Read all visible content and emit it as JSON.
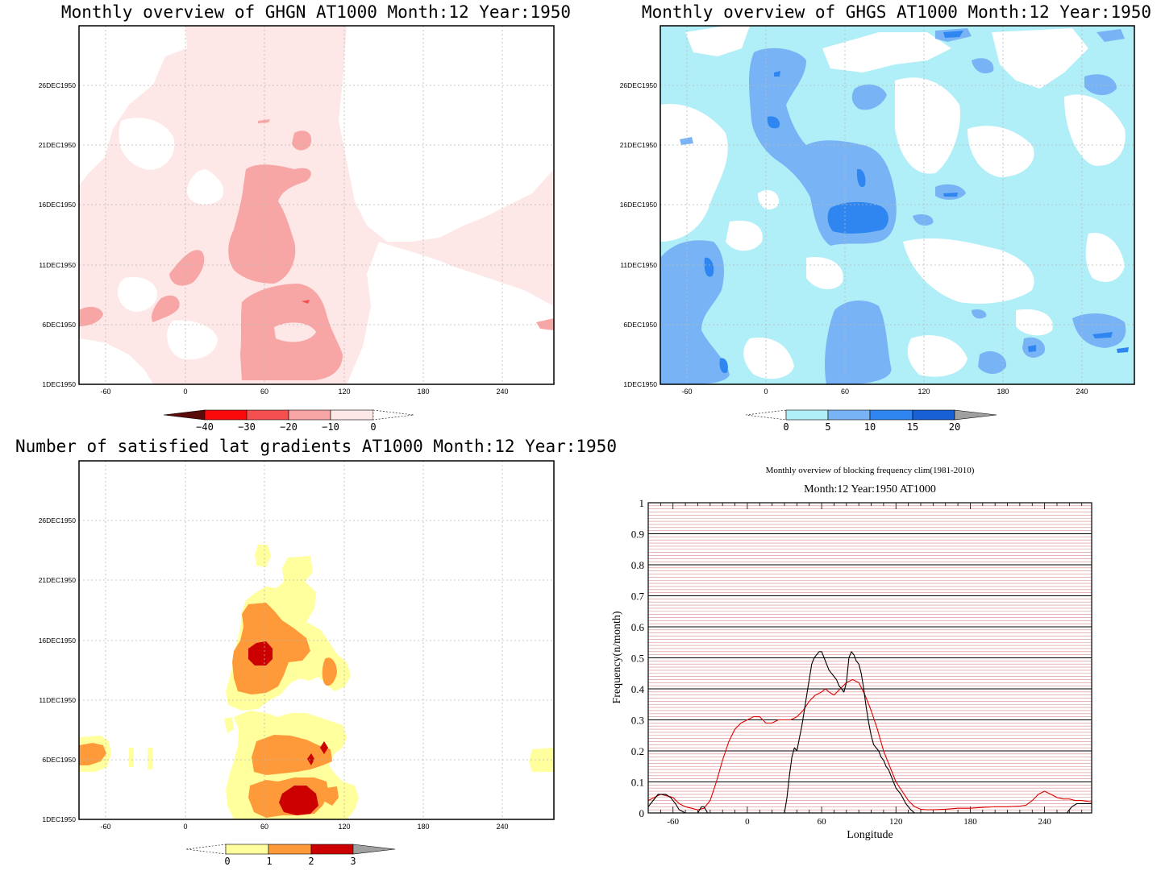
{
  "panels": [
    {
      "id": "ghgn",
      "title": "Monthly overview of GHGN AT1000 Month:12 Year:1950",
      "palette_name": "reds",
      "colorbar": {
        "colors": [
          "#5a0a0a",
          "#fa0a0a",
          "#f55050",
          "#f8a5a5",
          "#fde7e7",
          "#ffffff"
        ],
        "labels": [
          "−40",
          "−30",
          "−20",
          "−10",
          "0"
        ]
      }
    },
    {
      "id": "ghgs",
      "title": "Monthly overview of GHGS AT1000 Month:12 Year:1950",
      "palette_name": "blues",
      "colorbar": {
        "colors": [
          "#ffffff",
          "#b0eef8",
          "#78b4f5",
          "#2f86f0",
          "#1860d6",
          "#a0a0a0"
        ],
        "labels": [
          "0",
          "5",
          "10",
          "15",
          "20"
        ]
      }
    },
    {
      "id": "satisfied",
      "title": "Number of satisfied lat gradients AT1000 Month:12 Year:1950",
      "palette_name": "yellow-orange-red",
      "colorbar": {
        "colors": [
          "#ffffff",
          "#ffff9d",
          "#ff9a3a",
          "#cc0000",
          "#a0a0a0"
        ],
        "labels": [
          "0",
          "1",
          "2",
          "3"
        ]
      }
    }
  ],
  "hovmoller_axes": {
    "x_tick_labels": [
      "-60",
      "0",
      "60",
      "120",
      "180",
      "240"
    ],
    "x_ticks": [
      -60,
      0,
      60,
      120,
      180,
      240
    ],
    "x_range": [
      -80,
      278
    ],
    "y_tick_labels": [
      "1DEC1950",
      "6DEC1950",
      "11DEC1950",
      "16DEC1950",
      "21DEC1950",
      "26DEC1950"
    ],
    "y_ticks": [
      1,
      6,
      11,
      16,
      21,
      26
    ],
    "y_range": [
      1,
      31
    ]
  },
  "chart_data": {
    "type": "line",
    "title": "Monthly overview of blocking frequency clim(1981-2010)",
    "subtitle": "Month:12 Year:1950  AT1000",
    "xlabel": "Longitude",
    "ylabel": "Frequency(n/month)",
    "xlim": [
      -80,
      278
    ],
    "ylim": [
      0,
      1
    ],
    "x_ticks": [
      -60,
      0,
      60,
      120,
      180,
      240
    ],
    "x_tick_labels": [
      "-60",
      "0",
      "60",
      "120",
      "180",
      "240"
    ],
    "y_ticks": [
      0,
      0.1,
      0.2,
      0.3,
      0.4,
      0.5,
      0.6,
      0.7,
      0.8,
      0.9,
      1
    ],
    "y_tick_labels": [
      "0",
      "0.1",
      "0.2",
      "0.3",
      "0.4",
      "0.5",
      "0.6",
      "0.7",
      "0.8",
      "0.9",
      "1"
    ],
    "grid": true,
    "series": [
      {
        "color": "#e00000",
        "x": [
          -80,
          -70,
          -60,
          -55,
          -50,
          -45,
          -40,
          -35,
          -30,
          -25,
          -20,
          -15,
          -10,
          -5,
          0,
          5,
          10,
          15,
          20,
          25,
          30,
          35,
          40,
          45,
          50,
          55,
          60,
          63,
          66,
          70,
          75,
          80,
          85,
          90,
          95,
          100,
          105,
          110,
          115,
          120,
          125,
          130,
          135,
          140,
          145,
          150,
          160,
          170,
          180,
          190,
          200,
          210,
          220,
          225,
          230,
          235,
          240,
          245,
          250,
          255,
          260,
          265,
          270,
          278
        ],
        "y": [
          0.04,
          0.06,
          0.05,
          0.03,
          0.02,
          0.015,
          0.01,
          0.015,
          0.04,
          0.1,
          0.17,
          0.23,
          0.27,
          0.29,
          0.3,
          0.31,
          0.31,
          0.29,
          0.29,
          0.3,
          0.3,
          0.3,
          0.31,
          0.33,
          0.36,
          0.38,
          0.39,
          0.4,
          0.39,
          0.38,
          0.4,
          0.42,
          0.43,
          0.42,
          0.38,
          0.33,
          0.27,
          0.2,
          0.15,
          0.1,
          0.07,
          0.04,
          0.02,
          0.012,
          0.01,
          0.01,
          0.012,
          0.015,
          0.015,
          0.018,
          0.02,
          0.02,
          0.022,
          0.025,
          0.04,
          0.06,
          0.07,
          0.06,
          0.05,
          0.045,
          0.045,
          0.04,
          0.04,
          0.035
        ]
      },
      {
        "color": "#000000",
        "x": [
          -80,
          -72,
          -66,
          -62,
          -58,
          -55,
          -50,
          -45,
          -40,
          -37,
          -35,
          -32,
          -30,
          -28,
          -25,
          0,
          30,
          32,
          34,
          36,
          38,
          40,
          42,
          44,
          46,
          48,
          50,
          52,
          54,
          56,
          58,
          60,
          62,
          64,
          66,
          68,
          70,
          72,
          74,
          76,
          78,
          80,
          82,
          84,
          86,
          88,
          90,
          92,
          94,
          96,
          98,
          100,
          102,
          104,
          106,
          108,
          110,
          112,
          114,
          116,
          118,
          120,
          124,
          128,
          132,
          135,
          140,
          150,
          200,
          250,
          258,
          262,
          266,
          270,
          274,
          278
        ],
        "y": [
          0.02,
          0.06,
          0.06,
          0.05,
          0.03,
          0.01,
          0.0,
          0.0,
          0.0,
          0.02,
          0.02,
          0.0,
          0.0,
          0.0,
          0.0,
          0.0,
          0.0,
          0.05,
          0.12,
          0.18,
          0.21,
          0.2,
          0.24,
          0.28,
          0.33,
          0.38,
          0.43,
          0.48,
          0.5,
          0.51,
          0.52,
          0.52,
          0.5,
          0.48,
          0.46,
          0.45,
          0.44,
          0.43,
          0.41,
          0.4,
          0.39,
          0.42,
          0.5,
          0.52,
          0.51,
          0.49,
          0.48,
          0.45,
          0.4,
          0.34,
          0.29,
          0.25,
          0.22,
          0.21,
          0.2,
          0.18,
          0.17,
          0.15,
          0.14,
          0.12,
          0.1,
          0.08,
          0.06,
          0.03,
          0.01,
          0.0,
          0.0,
          0.0,
          0.0,
          0.0,
          0.0,
          0.02,
          0.03,
          0.03,
          0.03,
          0.03
        ]
      }
    ]
  }
}
